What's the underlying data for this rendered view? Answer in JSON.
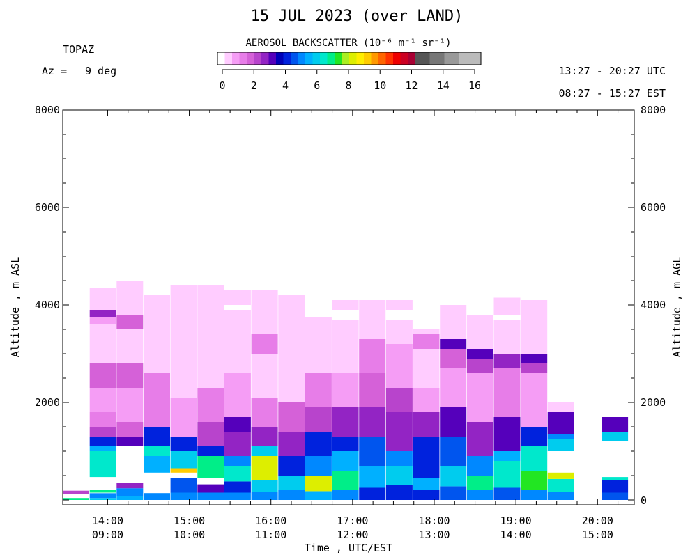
{
  "header": {
    "title": "15 JUL 2023 (over LAND)",
    "instrument": "TOPAZ",
    "azimuth_label": "Az =",
    "azimuth_value": "9 deg",
    "utc_range": "13:27 - 20:27 UTC",
    "local_range": "08:27 - 15:27 EST"
  },
  "colorbar": {
    "title": "AEROSOL BACKSCATTER (10⁻⁶ m⁻¹ sr⁻¹)",
    "ticks": [
      "0",
      "2",
      "4",
      "6",
      "8",
      "10",
      "12",
      "14",
      "16"
    ],
    "colors": [
      "#ffffff",
      "#ffccff",
      "#f59df5",
      "#e77de8",
      "#d561d8",
      "#b844cc",
      "#9324c4",
      "#5500bb",
      "#0000b8",
      "#0022dd",
      "#0055ee",
      "#0088ff",
      "#00b0ff",
      "#00ccee",
      "#00e8cc",
      "#00ee88",
      "#22e622",
      "#aaee22",
      "#ddee00",
      "#ffee00",
      "#ffcc00",
      "#ff9900",
      "#ff6600",
      "#ff3300",
      "#ee0000",
      "#cc0022",
      "#a80033",
      "#555555",
      "#555555",
      "#777777",
      "#777777",
      "#999999",
      "#999999",
      "#bbbbbb",
      "#bbbbbb",
      "#bbbbbb"
    ]
  },
  "axes": {
    "left_label": "Altitude , m ASL",
    "right_label": "Altitude , m AGL",
    "x_label": "Time , UTC/EST",
    "left_ticks": [
      "8000",
      "6000",
      "4000",
      "2000"
    ],
    "right_ticks": [
      "8000",
      "6000",
      "4000",
      "2000",
      "0"
    ],
    "x_ticks": [
      {
        "utc": "14:00",
        "est": "09:00"
      },
      {
        "utc": "15:00",
        "est": "10:00"
      },
      {
        "utc": "16:00",
        "est": "11:00"
      },
      {
        "utc": "17:00",
        "est": "12:00"
      },
      {
        "utc": "18:00",
        "est": "13:00"
      },
      {
        "utc": "19:00",
        "est": "14:00"
      },
      {
        "utc": "20:00",
        "est": "15:00"
      }
    ]
  },
  "chart_data": {
    "type": "heatmap",
    "title": "15 JUL 2023 (over LAND)",
    "xlabel": "Time , UTC/EST",
    "ylabel": "Altitude , m ASL",
    "ylabel_right": "Altitude , m AGL",
    "x_range_utc_hours": [
      13.45,
      20.45
    ],
    "y_range_m_asl": [
      -100,
      8000
    ],
    "y_range_m_agl": [
      0,
      8000
    ],
    "value_units": "10^-6 m^-1 sr^-1",
    "value_range": [
      0,
      16
    ],
    "time_step_hours": 0.333,
    "description_of_cell": "[altitude_bottom_m_asl, altitude_top_m_asl, backscatter]",
    "profiles": [
      {
        "t": 13.45,
        "cells": [
          [
            0,
            40,
            7
          ],
          [
            120,
            190,
            2.6
          ]
        ]
      },
      {
        "t": 13.78,
        "cells": [
          [
            0,
            40,
            6
          ],
          [
            40,
            140,
            5
          ],
          [
            140,
            160,
            0.4
          ],
          [
            150,
            200,
            7
          ],
          [
            200,
            470,
            0
          ],
          [
            470,
            1000,
            6.5
          ],
          [
            1000,
            1100,
            5.5
          ],
          [
            1100,
            1300,
            4
          ],
          [
            1300,
            1500,
            2.5
          ],
          [
            1500,
            1800,
            1.5
          ],
          [
            1800,
            2300,
            1.2
          ],
          [
            2300,
            2800,
            1.8
          ],
          [
            2800,
            3600,
            0.8
          ],
          [
            3600,
            3750,
            1.3
          ],
          [
            3750,
            3900,
            2.8
          ],
          [
            3900,
            4350,
            0.5
          ]
        ]
      },
      {
        "t": 14.11,
        "cells": [
          [
            0,
            80,
            5.5
          ],
          [
            80,
            240,
            5
          ],
          [
            240,
            350,
            3
          ],
          [
            350,
            1100,
            0
          ],
          [
            1100,
            1300,
            3.2
          ],
          [
            1300,
            1600,
            2
          ],
          [
            1600,
            2300,
            1.2
          ],
          [
            2300,
            2800,
            1.8
          ],
          [
            2800,
            3500,
            0.8
          ],
          [
            3500,
            3800,
            2
          ],
          [
            3800,
            4500,
            0.5
          ]
        ]
      },
      {
        "t": 14.44,
        "cells": [
          [
            0,
            140,
            5
          ],
          [
            140,
            560,
            0
          ],
          [
            560,
            900,
            5.5
          ],
          [
            900,
            1100,
            6.5
          ],
          [
            1100,
            1500,
            4
          ],
          [
            1500,
            2600,
            1.5
          ],
          [
            2600,
            3800,
            0.8
          ],
          [
            3800,
            4200,
            0.6
          ]
        ]
      },
      {
        "t": 14.77,
        "cells": [
          [
            0,
            150,
            5
          ],
          [
            150,
            450,
            4.5
          ],
          [
            450,
            560,
            0
          ],
          [
            560,
            650,
            9
          ],
          [
            650,
            1000,
            6
          ],
          [
            1000,
            1300,
            4
          ],
          [
            1300,
            2100,
            1.2
          ],
          [
            2100,
            3800,
            0.6
          ],
          [
            3800,
            4400,
            0.5
          ]
        ]
      },
      {
        "t": 15.1,
        "cells": [
          [
            0,
            150,
            5
          ],
          [
            150,
            320,
            3.5
          ],
          [
            320,
            450,
            0
          ],
          [
            450,
            900,
            7
          ],
          [
            900,
            1100,
            4
          ],
          [
            1100,
            1600,
            2.5
          ],
          [
            1600,
            2300,
            1.5
          ],
          [
            2300,
            3700,
            0.8
          ],
          [
            3700,
            4400,
            0.5
          ]
        ]
      },
      {
        "t": 15.43,
        "cells": [
          [
            0,
            150,
            5
          ],
          [
            150,
            380,
            4
          ],
          [
            380,
            700,
            6.5
          ],
          [
            700,
            900,
            5
          ],
          [
            900,
            1400,
            3
          ],
          [
            1400,
            1700,
            3.5
          ],
          [
            1700,
            2600,
            1.2
          ],
          [
            2600,
            3500,
            0.8
          ],
          [
            3500,
            3900,
            0.5
          ],
          [
            4000,
            4300,
            0.5
          ]
        ]
      },
      {
        "t": 15.76,
        "cells": [
          [
            0,
            160,
            5
          ],
          [
            160,
            400,
            6
          ],
          [
            400,
            900,
            8
          ],
          [
            900,
            1100,
            6
          ],
          [
            1100,
            1500,
            3
          ],
          [
            1500,
            2100,
            1.5
          ],
          [
            2100,
            3000,
            0.8
          ],
          [
            3000,
            3400,
            1.5
          ],
          [
            3400,
            4300,
            0.5
          ]
        ]
      },
      {
        "t": 16.09,
        "cells": [
          [
            0,
            200,
            5
          ],
          [
            200,
            500,
            6
          ],
          [
            500,
            900,
            4
          ],
          [
            900,
            1400,
            3
          ],
          [
            1400,
            2000,
            1.8
          ],
          [
            2000,
            3200,
            0.8
          ],
          [
            3200,
            4200,
            0.5
          ]
        ]
      },
      {
        "t": 16.42,
        "cells": [
          [
            0,
            180,
            5.5
          ],
          [
            180,
            500,
            8
          ],
          [
            500,
            900,
            5
          ],
          [
            900,
            1400,
            4
          ],
          [
            1400,
            1900,
            2.5
          ],
          [
            1900,
            2600,
            1.5
          ],
          [
            2600,
            3750,
            0.5
          ]
        ]
      },
      {
        "t": 16.75,
        "cells": [
          [
            0,
            200,
            5
          ],
          [
            200,
            600,
            7
          ],
          [
            600,
            1000,
            5.5
          ],
          [
            1000,
            1300,
            4
          ],
          [
            1300,
            1900,
            2.8
          ],
          [
            1900,
            2600,
            1.2
          ],
          [
            2600,
            3200,
            0.8
          ],
          [
            3200,
            3700,
            0.5
          ],
          [
            3900,
            4100,
            0.6
          ]
        ]
      },
      {
        "t": 17.08,
        "cells": [
          [
            0,
            250,
            4
          ],
          [
            250,
            700,
            5.5
          ],
          [
            700,
            1300,
            4.5
          ],
          [
            1300,
            1900,
            2.8
          ],
          [
            1900,
            2600,
            2
          ],
          [
            2600,
            3300,
            1.5
          ],
          [
            3300,
            4100,
            0.5
          ]
        ]
      },
      {
        "t": 17.41,
        "cells": [
          [
            0,
            300,
            4
          ],
          [
            300,
            700,
            6
          ],
          [
            700,
            1000,
            5
          ],
          [
            1000,
            1800,
            3
          ],
          [
            1800,
            2300,
            2.5
          ],
          [
            2300,
            3200,
            1
          ],
          [
            3200,
            3700,
            0.5
          ],
          [
            3900,
            4100,
            0.6
          ]
        ]
      },
      {
        "t": 17.74,
        "cells": [
          [
            0,
            200,
            4
          ],
          [
            200,
            450,
            5.5
          ],
          [
            450,
            1300,
            4
          ],
          [
            1300,
            1800,
            2.8
          ],
          [
            1800,
            2300,
            1.2
          ],
          [
            2300,
            3100,
            0.8
          ],
          [
            3100,
            3400,
            1.5
          ],
          [
            3400,
            3500,
            0.5
          ]
        ]
      },
      {
        "t": 18.07,
        "cells": [
          [
            0,
            280,
            4.5
          ],
          [
            280,
            700,
            6
          ],
          [
            700,
            1300,
            4.5
          ],
          [
            1300,
            1900,
            3.2
          ],
          [
            1900,
            2700,
            1.2
          ],
          [
            2700,
            3100,
            2
          ],
          [
            3100,
            3300,
            3.5
          ],
          [
            3300,
            4000,
            0.5
          ]
        ]
      },
      {
        "t": 18.4,
        "cells": [
          [
            0,
            200,
            5
          ],
          [
            200,
            500,
            7
          ],
          [
            500,
            900,
            5
          ],
          [
            900,
            1600,
            3
          ],
          [
            1600,
            2600,
            1.2
          ],
          [
            2600,
            2900,
            2.5
          ],
          [
            2900,
            3100,
            3.2
          ],
          [
            3100,
            3800,
            0.6
          ]
        ]
      },
      {
        "t": 18.73,
        "cells": [
          [
            0,
            250,
            4.5
          ],
          [
            250,
            800,
            6.5
          ],
          [
            800,
            1000,
            5.5
          ],
          [
            1000,
            1700,
            3.3
          ],
          [
            1700,
            2700,
            1.5
          ],
          [
            2700,
            3000,
            3
          ],
          [
            3000,
            3700,
            0.6
          ],
          [
            3800,
            4150,
            0.6
          ]
        ]
      },
      {
        "t": 19.06,
        "cells": [
          [
            0,
            200,
            5
          ],
          [
            200,
            600,
            7.5
          ],
          [
            600,
            1100,
            6.5
          ],
          [
            1100,
            1500,
            4
          ],
          [
            1500,
            2600,
            1.3
          ],
          [
            2600,
            2800,
            2.5
          ],
          [
            2800,
            3000,
            3.5
          ],
          [
            3000,
            3900,
            0.6
          ],
          [
            3900,
            4100,
            0.5
          ]
        ]
      },
      {
        "t": 19.39,
        "cells": [
          [
            0,
            160,
            5
          ],
          [
            160,
            430,
            6.5
          ],
          [
            430,
            560,
            8
          ],
          [
            560,
            1000,
            0
          ],
          [
            1000,
            1250,
            6
          ],
          [
            1250,
            1350,
            5
          ],
          [
            1350,
            1800,
            3.2
          ],
          [
            1800,
            2000,
            0.8
          ]
        ]
      },
      {
        "t": 19.72,
        "cells": []
      },
      {
        "t": 20.05,
        "cells": [
          [
            0,
            150,
            4.5
          ],
          [
            150,
            400,
            4
          ],
          [
            400,
            470,
            6.5
          ],
          [
            1200,
            1400,
            6
          ],
          [
            1400,
            1700,
            3.3
          ]
        ]
      }
    ]
  }
}
